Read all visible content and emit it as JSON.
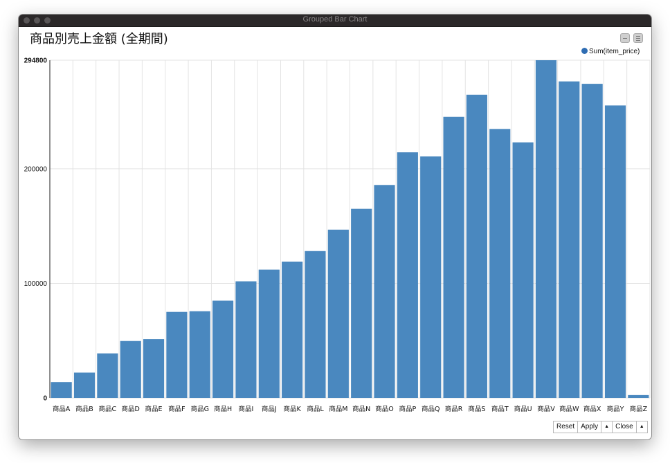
{
  "window": {
    "title": "Grouped Bar Chart"
  },
  "colors": {
    "bar": "#4a88bf",
    "legend_marker": "#2f6db3",
    "grid": "#e3e3e3",
    "axis": "#222222"
  },
  "toolbar_icons": [
    "minimize-icon",
    "menu-icon"
  ],
  "footer": {
    "reset_label": "Reset",
    "apply_label": "Apply",
    "apply_arrow": "▲",
    "close_label": "Close",
    "close_arrow": "▲"
  },
  "chart_data": {
    "type": "bar",
    "title": "商品別売上金額 (全期間)",
    "xlabel": "",
    "ylabel": "",
    "legend_position": "top-right",
    "grid": true,
    "ylim": [
      0,
      294800
    ],
    "yticks": [
      0,
      100000,
      200000,
      294800
    ],
    "categories": [
      "商品A",
      "商品B",
      "商品C",
      "商品D",
      "商品E",
      "商品F",
      "商品G",
      "商品H",
      "商品I",
      "商品J",
      "商品K",
      "商品L",
      "商品M",
      "商品N",
      "商品O",
      "商品P",
      "商品Q",
      "商品R",
      "商品S",
      "商品T",
      "商品U",
      "商品V",
      "商品W",
      "商品X",
      "商品Y",
      "商品Z"
    ],
    "series": [
      {
        "name": "Sum(item_price)",
        "values": [
          13800,
          22100,
          38900,
          49700,
          51300,
          75100,
          75700,
          84900,
          101800,
          112000,
          119000,
          128200,
          146900,
          165100,
          185900,
          214400,
          210800,
          245400,
          264700,
          234800,
          223100,
          294800,
          276300,
          274200,
          255300,
          2500
        ]
      }
    ]
  }
}
